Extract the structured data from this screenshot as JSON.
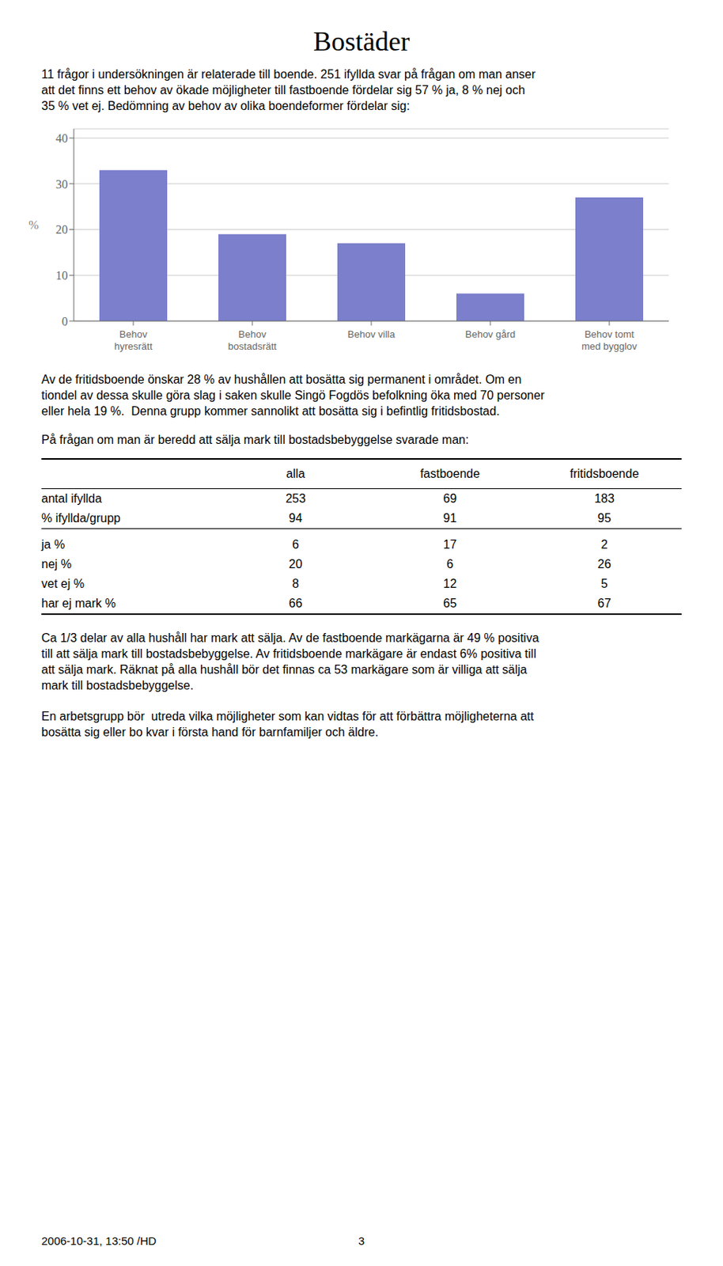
{
  "chart_data": [
    {
      "type": "bar",
      "title": "Bostäder",
      "categories": [
        "Behov\nhyresrätt",
        "Behov\nbostadsrätt",
        "Behov villa",
        "Behov gård",
        "Behov tomt\nmed bygglov"
      ],
      "values": [
        33,
        19,
        17,
        6,
        27
      ],
      "color": "#7b7fcc",
      "ylabel": "%",
      "ylim": [
        0,
        42
      ],
      "yticks": [
        0,
        10,
        20,
        30,
        40
      ],
      "grid": true,
      "annotations": [
        "11 frågor i undersökningen är relaterade till boende. 251 ifyllda svar på frågan om man anser",
        "att det finns ett behov av ökade möjligheter till fastboende fördelar sig 57 % ja, 8 % nej och",
        "35 % vet ej. Bedömning av behov av olika boendeformer fördelar sig:",
        "Av de fritidsboende önskar 28 % av hushållen att bosätta sig permanent i området. Om en",
        "tiondel av dessa skulle göra slag i saken skulle Singö Fogdös befolkning öka med 70 personer",
        "eller hela 19 %.  Denna grupp kommer sannolikt att bosätta sig i befintlig fritidsbostad.",
        "På frågan om man är beredd att sälja mark till bostadsbebyggelse svarade man:",
        "Ca 1/3 delar av alla hushåll har mark att sälja. Av de fastboende markägarna är 49 % positiva",
        "till att sälja mark till bostadsbebyggelse. Av fritidsboende markägare är endast 6% positiva till",
        "att sälja mark. Räknat på alla hushåll bör det finnas ca 53 markägare som är villiga att sälja",
        "mark till bostadsbebyggelse.",
        "En arbetsgrupp bör  utreda vilka möjligheter som kan vidtas för att förbättra möjligheterna att",
        "bosätta sig eller bo kvar i första hand för barnfamiljer och äldre.",
        "2006-10-31, 13:50 /HD",
        "3"
      ]
    },
    {
      "type": "table",
      "columns": [
        "alla",
        "fastboende",
        "fritidsboende"
      ],
      "rows": [
        {
          "name": "antal ifyllda",
          "values": [
            253,
            69,
            183
          ]
        },
        {
          "name": "% ifyllda/grupp",
          "values": [
            94,
            91,
            95
          ]
        },
        {
          "name": "ja %",
          "values": [
            6,
            17,
            2
          ]
        },
        {
          "name": "nej %",
          "values": [
            20,
            6,
            26
          ]
        },
        {
          "name": "vet ej %",
          "values": [
            8,
            12,
            5
          ]
        },
        {
          "name": "har ej mark %",
          "values": [
            66,
            65,
            67
          ]
        }
      ]
    }
  ]
}
